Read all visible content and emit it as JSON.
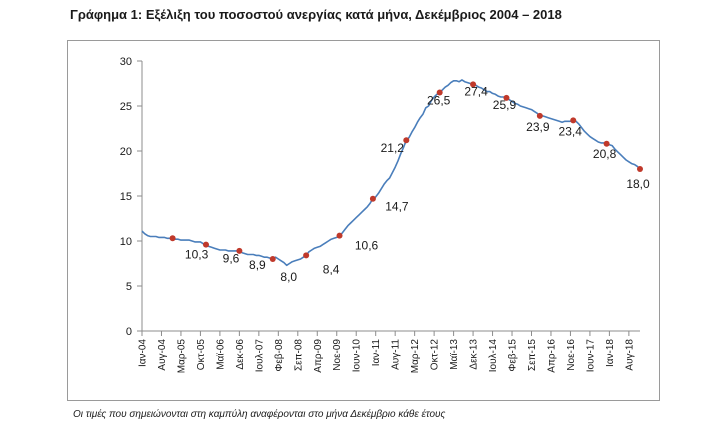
{
  "title": "Γράφημα 1: Εξέλιξη του ποσοστού ανεργίας κατά μήνα, Δεκέμβριος 2004 – 2018",
  "footnote": "Οι τιμές που σημειώνονται στη καμπύλη αναφέρονται στο μήνα Δεκέμβριο κάθε έτους",
  "colors": {
    "line": "#4a7ebb",
    "marker": "#c0392b",
    "axis": "#8c8c8c"
  },
  "chart_data": {
    "type": "line",
    "title": "",
    "xlabel": "",
    "ylabel": "",
    "ylim": [
      0,
      30
    ],
    "yticks": [
      0,
      5,
      10,
      15,
      20,
      25,
      30
    ],
    "grid": false,
    "legend": "none",
    "x_tick_labels": [
      "Ιαν-04",
      "Αυγ-04",
      "Μαρ-05",
      "Οκτ-05",
      "Μαϊ-06",
      "Δεκ-06",
      "Ιουλ-07",
      "Φεβ-08",
      "Σεπ-08",
      "Απρ-09",
      "Νοε-09",
      "Ιουν-10",
      "Ιαν-11",
      "Αυγ-11",
      "Μαρ-12",
      "Οκτ-12",
      "Μαϊ-13",
      "Δεκ-13",
      "Ιουλ-14",
      "Φεβ-15",
      "Σεπ-15",
      "Απρ-16",
      "Νοε-16",
      "Ιουν-17",
      "Ιαν-18",
      "Αυγ-18"
    ],
    "series": [
      {
        "values": [
          11.1,
          10.8,
          10.6,
          10.5,
          10.5,
          10.5,
          10.4,
          10.4,
          10.4,
          10.3,
          10.3,
          10.3,
          10.2,
          10.2,
          10.1,
          10.1,
          10.1,
          10.1,
          10.0,
          9.9,
          9.9,
          9.9,
          9.7,
          9.6,
          9.4,
          9.3,
          9.2,
          9.1,
          9.0,
          9.0,
          9.0,
          8.9,
          8.9,
          8.9,
          8.9,
          8.9,
          8.7,
          8.6,
          8.5,
          8.5,
          8.5,
          8.4,
          8.4,
          8.3,
          8.2,
          8.2,
          8.1,
          8.0,
          8.2,
          8.0,
          7.8,
          7.6,
          7.3,
          7.5,
          7.7,
          7.8,
          7.9,
          8.0,
          8.2,
          8.4,
          8.8,
          9.0,
          9.2,
          9.3,
          9.4,
          9.6,
          9.8,
          10.0,
          10.2,
          10.3,
          10.4,
          10.6,
          10.9,
          11.3,
          11.7,
          12.0,
          12.3,
          12.6,
          12.9,
          13.2,
          13.5,
          13.8,
          14.2,
          14.7,
          14.9,
          15.3,
          15.8,
          16.3,
          16.7,
          17.0,
          17.6,
          18.2,
          18.9,
          19.7,
          20.4,
          21.2,
          21.5,
          22.1,
          22.6,
          23.2,
          23.7,
          24.1,
          24.8,
          25.0,
          25.6,
          26.0,
          26.3,
          26.5,
          26.8,
          27.1,
          27.3,
          27.6,
          27.8,
          27.8,
          27.7,
          27.9,
          27.7,
          27.6,
          27.5,
          27.4,
          27.3,
          27.1,
          27.0,
          26.8,
          26.6,
          26.6,
          26.4,
          26.3,
          26.1,
          26.0,
          26.0,
          25.9,
          25.7,
          25.5,
          25.3,
          25.2,
          25.0,
          24.9,
          24.8,
          24.7,
          24.6,
          24.4,
          24.2,
          23.9,
          23.9,
          23.8,
          23.7,
          23.6,
          23.5,
          23.4,
          23.3,
          23.2,
          23.3,
          23.3,
          23.3,
          23.4,
          23.3,
          23.0,
          22.6,
          22.2,
          21.9,
          21.6,
          21.4,
          21.2,
          21.0,
          20.9,
          20.9,
          20.8,
          20.7,
          20.6,
          20.2,
          19.9,
          19.6,
          19.3,
          19.0,
          18.8,
          18.6,
          18.5,
          18.3,
          18.0
        ]
      }
    ],
    "december_labels": [
      {
        "year": 2004,
        "label": "10,3",
        "value": 10.3
      },
      {
        "year": 2005,
        "label": "9,6",
        "value": 9.6
      },
      {
        "year": 2006,
        "label": "8,9",
        "value": 8.9
      },
      {
        "year": 2007,
        "label": "8,0",
        "value": 8.0
      },
      {
        "year": 2008,
        "label": "8,4",
        "value": 8.4
      },
      {
        "year": 2009,
        "label": "10,6",
        "value": 10.6
      },
      {
        "year": 2010,
        "label": "14,7",
        "value": 14.7
      },
      {
        "year": 2011,
        "label": "21,2",
        "value": 21.2
      },
      {
        "year": 2012,
        "label": "26,5",
        "value": 26.5
      },
      {
        "year": 2013,
        "label": "27,4",
        "value": 27.4
      },
      {
        "year": 2014,
        "label": "25,9",
        "value": 25.9
      },
      {
        "year": 2015,
        "label": "23,9",
        "value": 23.9
      },
      {
        "year": 2016,
        "label": "23,4",
        "value": 23.4
      },
      {
        "year": 2017,
        "label": "20,8",
        "value": 20.8
      },
      {
        "year": 2018,
        "label": "18,0",
        "value": 18.0
      }
    ]
  }
}
